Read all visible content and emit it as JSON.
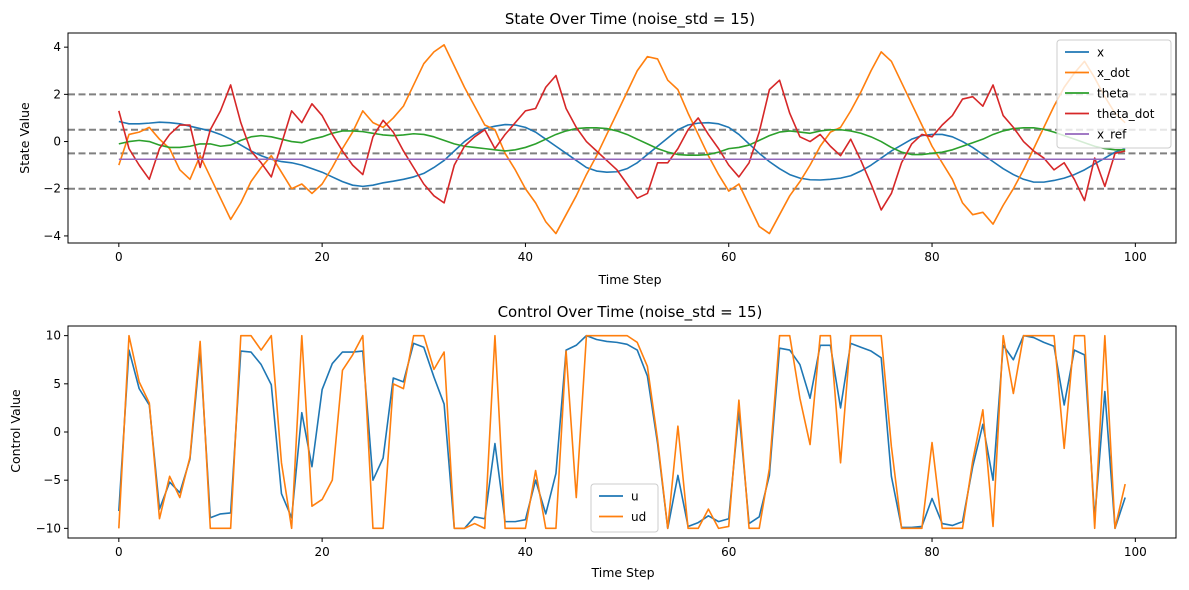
{
  "chart_data": [
    {
      "type": "line",
      "title": "State Over Time (noise_std = 15)",
      "xlabel": "Time Step",
      "ylabel": "State Value",
      "xlim": [
        -5,
        104
      ],
      "ylim": [
        -4.3,
        4.6
      ],
      "xticks": [
        0,
        20,
        40,
        60,
        80,
        100
      ],
      "yticks": [
        -4,
        -2,
        0,
        2,
        4
      ],
      "grid": false,
      "legend_position": "top-right",
      "hlines": [
        {
          "y": 2,
          "style": "dashed",
          "color": "#808080"
        },
        {
          "y": 0.5,
          "style": "dashed",
          "color": "#808080"
        },
        {
          "y": -0.5,
          "style": "dashed",
          "color": "#808080"
        },
        {
          "y": -2,
          "style": "dashed",
          "color": "#808080"
        }
      ],
      "series": [
        {
          "name": "x",
          "color": "#1f77b4",
          "x_start": 0,
          "values": [
            0.85,
            0.75,
            0.75,
            0.78,
            0.82,
            0.8,
            0.75,
            0.65,
            0.55,
            0.45,
            0.3,
            0.1,
            -0.15,
            -0.4,
            -0.6,
            -0.75,
            -0.85,
            -0.9,
            -1.0,
            -1.15,
            -1.3,
            -1.5,
            -1.7,
            -1.85,
            -1.9,
            -1.85,
            -1.75,
            -1.68,
            -1.6,
            -1.5,
            -1.35,
            -1.1,
            -0.8,
            -0.4,
            0.0,
            0.3,
            0.55,
            0.65,
            0.72,
            0.7,
            0.6,
            0.4,
            0.1,
            -0.2,
            -0.5,
            -0.8,
            -1.1,
            -1.25,
            -1.3,
            -1.28,
            -1.15,
            -0.9,
            -0.55,
            -0.2,
            0.15,
            0.5,
            0.7,
            0.78,
            0.8,
            0.75,
            0.6,
            0.3,
            -0.1,
            -0.5,
            -0.85,
            -1.15,
            -1.4,
            -1.55,
            -1.62,
            -1.63,
            -1.6,
            -1.55,
            -1.45,
            -1.25,
            -1.0,
            -0.7,
            -0.4,
            -0.15,
            0.1,
            0.25,
            0.3,
            0.3,
            0.2,
            0.0,
            -0.25,
            -0.55,
            -0.85,
            -1.15,
            -1.4,
            -1.6,
            -1.72,
            -1.72,
            -1.65,
            -1.55,
            -1.4,
            -1.2,
            -0.95,
            -0.7,
            -0.45,
            -0.3
          ]
        },
        {
          "name": "x_dot",
          "color": "#ff7f0e",
          "x_start": 0,
          "values": [
            -1.0,
            0.3,
            0.4,
            0.6,
            0.1,
            -0.3,
            -1.2,
            -1.6,
            -0.6,
            -1.5,
            -2.4,
            -3.3,
            -2.6,
            -1.7,
            -1.1,
            -0.6,
            -1.3,
            -2.0,
            -1.8,
            -2.2,
            -1.8,
            -1.1,
            -0.3,
            0.4,
            1.3,
            0.8,
            0.6,
            1.0,
            1.5,
            2.4,
            3.3,
            3.8,
            4.1,
            3.2,
            2.3,
            1.5,
            0.7,
            0.5,
            -0.5,
            -1.2,
            -2.0,
            -2.6,
            -3.4,
            -3.9,
            -3.1,
            -2.3,
            -1.4,
            -0.6,
            0.3,
            1.2,
            2.1,
            3.0,
            3.6,
            3.5,
            2.6,
            2.2,
            1.2,
            0.3,
            -0.6,
            -1.4,
            -2.1,
            -1.8,
            -2.7,
            -3.6,
            -3.9,
            -3.1,
            -2.3,
            -1.7,
            -1.0,
            -0.2,
            0.4,
            0.6,
            1.3,
            2.1,
            3.0,
            3.8,
            3.4,
            2.5,
            1.6,
            0.7,
            -0.2,
            -0.9,
            -1.6,
            -2.6,
            -3.1,
            -3.0,
            -3.5,
            -2.7,
            -2.0,
            -1.2,
            -0.3,
            0.6,
            1.5,
            2.3,
            2.9,
            3.4,
            2.7,
            1.9,
            1.2,
            0.8
          ]
        },
        {
          "name": "theta",
          "color": "#2ca02c",
          "x_start": 0,
          "values": [
            -0.1,
            0.0,
            0.05,
            0.0,
            -0.15,
            -0.25,
            -0.25,
            -0.2,
            -0.1,
            -0.1,
            -0.2,
            -0.15,
            0.05,
            0.2,
            0.25,
            0.2,
            0.1,
            0.0,
            -0.05,
            0.1,
            0.2,
            0.35,
            0.45,
            0.45,
            0.42,
            0.35,
            0.28,
            0.25,
            0.28,
            0.33,
            0.3,
            0.2,
            0.05,
            -0.1,
            -0.2,
            -0.25,
            -0.3,
            -0.35,
            -0.4,
            -0.35,
            -0.25,
            -0.1,
            0.1,
            0.3,
            0.45,
            0.55,
            0.58,
            0.58,
            0.55,
            0.45,
            0.3,
            0.1,
            -0.1,
            -0.3,
            -0.45,
            -0.55,
            -0.58,
            -0.58,
            -0.55,
            -0.45,
            -0.3,
            -0.25,
            -0.15,
            0.05,
            0.25,
            0.4,
            0.45,
            0.4,
            0.35,
            0.45,
            0.5,
            0.5,
            0.45,
            0.35,
            0.2,
            0.0,
            -0.25,
            -0.45,
            -0.55,
            -0.55,
            -0.5,
            -0.45,
            -0.35,
            -0.2,
            -0.05,
            0.1,
            0.3,
            0.45,
            0.55,
            0.58,
            0.58,
            0.52,
            0.4,
            0.25,
            0.1,
            -0.05,
            -0.2,
            -0.3,
            -0.35,
            -0.35
          ]
        },
        {
          "name": "theta_dot",
          "color": "#d62728",
          "x_start": 0,
          "values": [
            1.3,
            -0.3,
            -1.0,
            -1.6,
            -0.3,
            0.3,
            0.7,
            0.7,
            -1.1,
            0.5,
            1.3,
            2.4,
            0.8,
            -0.4,
            -0.9,
            -1.5,
            -0.1,
            1.3,
            0.8,
            1.6,
            1.1,
            0.3,
            -0.4,
            -1.0,
            -1.4,
            0.2,
            0.9,
            0.4,
            -0.4,
            -1.1,
            -1.8,
            -2.3,
            -2.6,
            -1.0,
            -0.2,
            0.2,
            0.5,
            -0.3,
            0.3,
            0.8,
            1.3,
            1.4,
            2.3,
            2.8,
            1.4,
            0.6,
            0.0,
            -0.4,
            -0.8,
            -1.2,
            -1.8,
            -2.4,
            -2.2,
            -0.9,
            -0.9,
            -0.3,
            0.5,
            1.0,
            0.3,
            -0.3,
            -1.0,
            -1.5,
            -0.9,
            0.4,
            2.2,
            2.6,
            1.2,
            0.2,
            0.0,
            0.3,
            -0.2,
            -0.6,
            0.1,
            -0.8,
            -1.8,
            -2.9,
            -2.2,
            -0.9,
            -0.1,
            0.3,
            0.2,
            0.7,
            1.1,
            1.8,
            1.9,
            1.5,
            2.4,
            1.1,
            0.6,
            0.0,
            -0.4,
            -0.7,
            -1.2,
            -0.9,
            -1.6,
            -2.5,
            -0.7,
            -1.9,
            -0.5,
            -0.4
          ]
        },
        {
          "name": "x_ref",
          "color": "#9467bd",
          "x_start": 0,
          "values": [
            -0.75,
            -0.75,
            -0.75,
            -0.75,
            -0.75,
            -0.75,
            -0.75,
            -0.75,
            -0.75,
            -0.75,
            -0.75,
            -0.75,
            -0.75,
            -0.75,
            -0.75,
            -0.75,
            -0.75,
            -0.75,
            -0.75,
            -0.75,
            -0.75,
            -0.75,
            -0.75,
            -0.75,
            -0.75,
            -0.75,
            -0.75,
            -0.75,
            -0.75,
            -0.75,
            -0.75,
            -0.75,
            -0.75,
            -0.75,
            -0.75,
            -0.75,
            -0.75,
            -0.75,
            -0.75,
            -0.75,
            -0.75,
            -0.75,
            -0.75,
            -0.75,
            -0.75,
            -0.75,
            -0.75,
            -0.75,
            -0.75,
            -0.75,
            -0.75,
            -0.75,
            -0.75,
            -0.75,
            -0.75,
            -0.75,
            -0.75,
            -0.75,
            -0.75,
            -0.75,
            -0.75,
            -0.75,
            -0.75,
            -0.75,
            -0.75,
            -0.75,
            -0.75,
            -0.75,
            -0.75,
            -0.75,
            -0.75,
            -0.75,
            -0.75,
            -0.75,
            -0.75,
            -0.75,
            -0.75,
            -0.75,
            -0.75,
            -0.75,
            -0.75,
            -0.75,
            -0.75,
            -0.75,
            -0.75,
            -0.75,
            -0.75,
            -0.75,
            -0.75,
            -0.75,
            -0.75,
            -0.75,
            -0.75,
            -0.75,
            -0.75,
            -0.75,
            -0.75,
            -0.75,
            -0.75,
            -0.75
          ]
        }
      ]
    },
    {
      "type": "line",
      "title": "Control Over Time (noise_std = 15)",
      "xlabel": "Time Step",
      "ylabel": "Control Value",
      "xlim": [
        -5,
        104
      ],
      "ylim": [
        -11,
        11
      ],
      "xticks": [
        0,
        20,
        40,
        60,
        80,
        100
      ],
      "yticks": [
        -10,
        -5,
        0,
        5,
        10
      ],
      "grid": false,
      "legend_position": "bottom-center",
      "series": [
        {
          "name": "u",
          "color": "#1f77b4",
          "x_start": 0,
          "values": [
            -8.2,
            8.5,
            4.5,
            2.8,
            -8.0,
            -5.2,
            -6.3,
            -2.8,
            8.5,
            -8.9,
            -8.5,
            -8.4,
            8.4,
            8.3,
            7.0,
            4.9,
            -6.4,
            -8.9,
            2.0,
            -3.6,
            4.4,
            7.1,
            8.3,
            8.3,
            8.4,
            -5.0,
            -2.7,
            5.6,
            5.2,
            9.2,
            8.8,
            5.7,
            2.9,
            -10.0,
            -10.0,
            -8.8,
            -9.0,
            -1.2,
            -9.3,
            -9.3,
            -9.1,
            -5.0,
            -8.5,
            -4.3,
            8.5,
            9.0,
            10.0,
            9.6,
            9.4,
            9.3,
            9.1,
            8.5,
            5.8,
            -1.2,
            -10.0,
            -4.5,
            -9.8,
            -9.4,
            -8.7,
            -9.3,
            -9.0,
            2.2,
            -9.5,
            -8.8,
            -4.5,
            8.7,
            8.5,
            7.0,
            3.5,
            9.0,
            9.0,
            2.5,
            9.2,
            8.8,
            8.4,
            7.7,
            -4.6,
            -9.9,
            -9.9,
            -9.8,
            -6.9,
            -9.5,
            -9.7,
            -9.3,
            -3.6,
            0.8,
            -5.0,
            9.0,
            7.5,
            10.0,
            9.8,
            9.3,
            8.9,
            2.8,
            8.5,
            8.0,
            -9.0,
            4.2,
            -10.0,
            -6.8
          ]
        },
        {
          "name": "ud",
          "color": "#ff7f0e",
          "x_start": 0,
          "values": [
            -10.0,
            10.0,
            5.2,
            3.0,
            -9.0,
            -4.6,
            -6.8,
            -2.6,
            9.4,
            -10.0,
            -10.0,
            -10.0,
            10.0,
            10.0,
            8.5,
            10.0,
            -3.2,
            -10.0,
            10.0,
            -7.7,
            -7.0,
            -5.0,
            6.4,
            8.0,
            10.0,
            -10.0,
            -10.0,
            5.0,
            4.5,
            10.0,
            10.0,
            6.5,
            8.3,
            -10.0,
            -10.0,
            -9.5,
            -10.0,
            10.0,
            -10.0,
            -10.0,
            -10.0,
            -4.0,
            -10.0,
            -10.0,
            8.4,
            -6.8,
            10.0,
            10.0,
            10.0,
            10.0,
            10.0,
            9.3,
            6.8,
            -0.8,
            -10.0,
            0.6,
            -10.0,
            -10.0,
            -8.0,
            -10.0,
            -9.8,
            3.3,
            -10.0,
            -10.0,
            -3.8,
            10.0,
            10.0,
            3.5,
            -1.3,
            10.0,
            10.0,
            -3.2,
            10.0,
            10.0,
            10.0,
            10.0,
            -1.5,
            -10.0,
            -10.0,
            -10.0,
            -1.1,
            -10.0,
            -10.0,
            -10.0,
            -3.0,
            2.3,
            -9.8,
            10.0,
            4.0,
            10.0,
            10.0,
            10.0,
            10.0,
            -1.7,
            10.0,
            10.0,
            -10.0,
            10.0,
            -10.0,
            -5.4
          ]
        }
      ]
    }
  ]
}
